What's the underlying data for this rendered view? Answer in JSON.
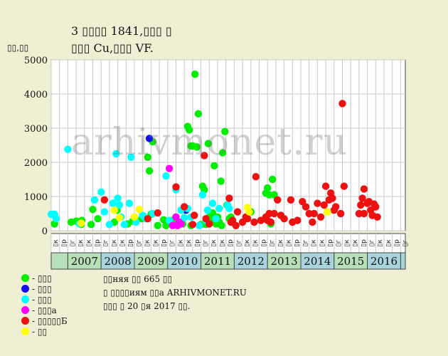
{
  "title": {
    "line1": "3 ▯▯▯▯ 1841,▯▯▯ ▯",
    "line2": "▯▯▯ Cu,▯▯▯ VF."
  },
  "watermark": "arhivmonet.ru",
  "colors": {
    "background": "#efefd4",
    "plot_bg": "#ffffff",
    "grid": "#c8c8c8",
    "year_even": "#b8e0b8",
    "year_odd": "#a8d4dc"
  },
  "legend": [
    {
      "name": "green",
      "color": "#00ee00",
      "label": "- ▯▯▯"
    },
    {
      "name": "blue",
      "color": "#1111ee",
      "label": "- ▯▯▯"
    },
    {
      "name": "cyan",
      "color": "#00ffff",
      "label": "- ▯▯▯"
    },
    {
      "name": "magenta",
      "color": "#ff00ff",
      "label": "- ▯▯▯а"
    },
    {
      "name": "red",
      "color": "#ee1111",
      "label": "- ▯▯▯▯▯Б"
    },
    {
      "name": "yellow",
      "color": "#ffff00",
      "label": "- ▯▯"
    }
  ],
  "notes": [
    "▯▯няя ▯▯ 665 ▯▯",
    "▯ ▯▯▯▯иям ▯▯а ARHIVMONET.RU",
    "▯▯▯ ▯ 20 ▯я 2017 ▯▯."
  ],
  "chart_data": {
    "type": "scatter",
    "ylabel": "▯▯,▯▯",
    "ylim": [
      0,
      5000
    ],
    "yticks": [
      0,
      1000,
      2000,
      3000,
      4000,
      5000
    ],
    "years": [
      "2007",
      "2008",
      "2009",
      "2010",
      "2011",
      "2012",
      "2013",
      "2014",
      "2015",
      "2016"
    ],
    "quarter_labels": [
      "▯к",
      "▯р",
      "▯г",
      "▯к"
    ],
    "x_unit": "year (fractional)",
    "xlim": [
      2006.0,
      2017.0
    ],
    "series": [
      {
        "color": "green",
        "points": [
          [
            2006.1,
            200
          ],
          [
            2006.6,
            250
          ],
          [
            2006.75,
            280
          ],
          [
            2006.9,
            180
          ],
          [
            2006.92,
            300
          ],
          [
            2007.2,
            180
          ],
          [
            2007.25,
            620
          ],
          [
            2007.4,
            350
          ],
          [
            2007.9,
            250
          ],
          [
            2007.98,
            600
          ],
          [
            2008.3,
            200
          ],
          [
            2008.45,
            280
          ],
          [
            2008.72,
            350
          ],
          [
            2008.9,
            2150
          ],
          [
            2008.95,
            1750
          ],
          [
            2009.0,
            480
          ],
          [
            2009.05,
            2600
          ],
          [
            2009.2,
            150
          ],
          [
            2009.38,
            320
          ],
          [
            2009.45,
            150
          ],
          [
            2009.5,
            200
          ],
          [
            2009.65,
            300
          ],
          [
            2009.95,
            200
          ],
          [
            2010.1,
            3050
          ],
          [
            2010.15,
            2950
          ],
          [
            2010.2,
            2480
          ],
          [
            2010.25,
            2480
          ],
          [
            2010.32,
            4580
          ],
          [
            2010.38,
            2450
          ],
          [
            2010.42,
            3420
          ],
          [
            2010.55,
            1300
          ],
          [
            2010.6,
            1200
          ],
          [
            2010.65,
            180
          ],
          [
            2010.72,
            2550
          ],
          [
            2010.75,
            400
          ],
          [
            2010.85,
            520
          ],
          [
            2010.9,
            1900
          ],
          [
            2010.95,
            200
          ],
          [
            2011.0,
            400
          ],
          [
            2011.05,
            250
          ],
          [
            2011.1,
            1450
          ],
          [
            2011.12,
            150
          ],
          [
            2011.15,
            2280
          ],
          [
            2011.22,
            2900
          ],
          [
            2011.28,
            750
          ],
          [
            2011.35,
            350
          ],
          [
            2011.4,
            400
          ],
          [
            2011.45,
            250
          ],
          [
            2012.0,
            550
          ],
          [
            2012.45,
            1100
          ],
          [
            2012.5,
            1250
          ],
          [
            2012.55,
            1050
          ],
          [
            2012.6,
            200
          ],
          [
            2012.65,
            1500
          ],
          [
            2012.7,
            1050
          ],
          [
            2010.5,
            180
          ],
          [
            2010.2,
            150
          ],
          [
            2010.8,
            250
          ]
        ]
      },
      {
        "color": "blue",
        "points": [
          [
            2008.95,
            2700
          ],
          [
            2010.05,
            600
          ]
        ]
      },
      {
        "color": "cyan",
        "points": [
          [
            2006.0,
            480
          ],
          [
            2006.1,
            480
          ],
          [
            2006.15,
            350
          ],
          [
            2006.5,
            2380
          ],
          [
            2006.85,
            200
          ],
          [
            2007.3,
            900
          ],
          [
            2007.5,
            1130
          ],
          [
            2007.6,
            550
          ],
          [
            2007.75,
            180
          ],
          [
            2007.85,
            800
          ],
          [
            2007.95,
            2250
          ],
          [
            2008.0,
            950
          ],
          [
            2008.05,
            750
          ],
          [
            2008.1,
            400
          ],
          [
            2008.2,
            180
          ],
          [
            2008.35,
            800
          ],
          [
            2008.4,
            2150
          ],
          [
            2008.55,
            250
          ],
          [
            2008.75,
            450
          ],
          [
            2008.85,
            350
          ],
          [
            2009.05,
            500
          ],
          [
            2009.45,
            1600
          ],
          [
            2009.55,
            300
          ],
          [
            2009.75,
            1200
          ],
          [
            2009.9,
            600
          ],
          [
            2010.0,
            380
          ],
          [
            2010.1,
            650
          ],
          [
            2010.2,
            400
          ],
          [
            2010.45,
            150
          ],
          [
            2010.55,
            1050
          ],
          [
            2010.65,
            300
          ],
          [
            2010.7,
            600
          ],
          [
            2010.85,
            800
          ],
          [
            2010.95,
            350
          ],
          [
            2011.05,
            650
          ],
          [
            2011.3,
            750
          ],
          [
            2011.35,
            650
          ]
        ]
      },
      {
        "color": "magenta",
        "points": [
          [
            2009.55,
            1820
          ],
          [
            2009.65,
            150
          ],
          [
            2009.75,
            400
          ],
          [
            2009.8,
            150
          ],
          [
            2009.85,
            250
          ],
          [
            2009.9,
            200
          ]
        ]
      },
      {
        "color": "red",
        "points": [
          [
            2007.6,
            900
          ],
          [
            2008.9,
            350
          ],
          [
            2009.2,
            520
          ],
          [
            2009.75,
            1280
          ],
          [
            2010.0,
            700
          ],
          [
            2010.25,
            180
          ],
          [
            2010.3,
            450
          ],
          [
            2010.6,
            2200
          ],
          [
            2010.65,
            350
          ],
          [
            2010.75,
            200
          ],
          [
            2011.35,
            950
          ],
          [
            2011.4,
            250
          ],
          [
            2011.45,
            300
          ],
          [
            2011.55,
            150
          ],
          [
            2011.6,
            550
          ],
          [
            2011.75,
            250
          ],
          [
            2011.85,
            400
          ],
          [
            2011.9,
            350
          ],
          [
            2012.1,
            250
          ],
          [
            2012.15,
            1580
          ],
          [
            2012.3,
            300
          ],
          [
            2012.45,
            400
          ],
          [
            2012.5,
            300
          ],
          [
            2012.55,
            500
          ],
          [
            2012.6,
            250
          ],
          [
            2012.7,
            500
          ],
          [
            2012.8,
            900
          ],
          [
            2012.9,
            450
          ],
          [
            2013.0,
            350
          ],
          [
            2013.2,
            900
          ],
          [
            2013.25,
            250
          ],
          [
            2013.4,
            300
          ],
          [
            2013.55,
            850
          ],
          [
            2013.65,
            700
          ],
          [
            2013.75,
            500
          ],
          [
            2013.85,
            250
          ],
          [
            2014.0,
            800
          ],
          [
            2014.1,
            400
          ],
          [
            2014.2,
            750
          ],
          [
            2014.25,
            1300
          ],
          [
            2014.35,
            900
          ],
          [
            2014.4,
            1100
          ],
          [
            2014.45,
            950
          ],
          [
            2014.5,
            600
          ],
          [
            2014.7,
            500
          ],
          [
            2014.75,
            3720
          ],
          [
            2014.8,
            1300
          ],
          [
            2015.25,
            500
          ],
          [
            2015.3,
            750
          ],
          [
            2015.35,
            950
          ],
          [
            2015.4,
            1220
          ],
          [
            2015.5,
            800
          ],
          [
            2015.55,
            850
          ],
          [
            2015.6,
            600
          ],
          [
            2015.65,
            450
          ],
          [
            2015.7,
            780
          ],
          [
            2015.75,
            700
          ],
          [
            2015.8,
            400
          ],
          [
            2015.4,
            500
          ],
          [
            2014.3,
            550
          ],
          [
            2013.9,
            500
          ],
          [
            2014.55,
            700
          ]
        ]
      },
      {
        "color": "yellow",
        "points": [
          [
            2006.9,
            220
          ],
          [
            2007.9,
            600
          ],
          [
            2008.05,
            380
          ],
          [
            2008.5,
            400
          ],
          [
            2008.65,
            620
          ],
          [
            2011.9,
            680
          ],
          [
            2011.95,
            550
          ],
          [
            2014.3,
            550
          ]
        ]
      }
    ]
  }
}
